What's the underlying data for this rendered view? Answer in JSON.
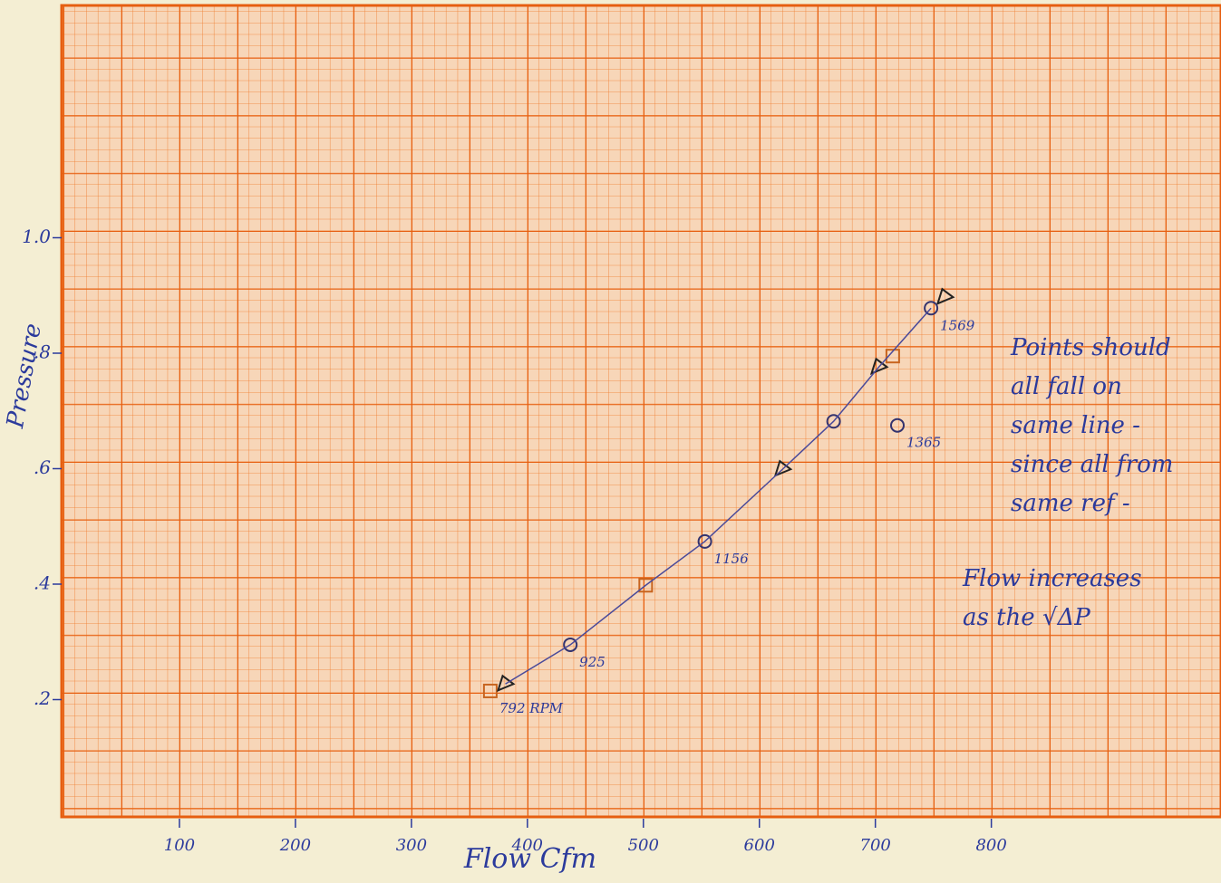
{
  "chart_data": {
    "type": "scatter",
    "x_label": "Flow Cfm",
    "y_label": "Pressure",
    "xlim": [
      0,
      998
    ],
    "ylim": [
      0,
      1.4
    ],
    "xticks": [
      100,
      200,
      300,
      400,
      500,
      600,
      700,
      800
    ],
    "yticks": [
      {
        "value": 0.2,
        "label": ".2"
      },
      {
        "value": 0.4,
        "label": ".4"
      },
      {
        "value": 0.6,
        "label": ".6"
      },
      {
        "value": 0.8,
        "label": ".8"
      },
      {
        "value": 1.0,
        "label": "1.0"
      }
    ],
    "annotations": [
      "Points should all fall on same line - since all from same ref -",
      "Flow increases as the √ΔP"
    ],
    "series": [
      {
        "marker": "square",
        "color": "#c8641e",
        "x": [
          368,
          502,
          715
        ],
        "values": [
          0.215,
          0.398,
          0.795
        ],
        "labels": [
          "792 RPM",
          null,
          null
        ]
      },
      {
        "marker": "triangle",
        "color": "#222222",
        "x": [
          381,
          620,
          703,
          760
        ],
        "values": [
          0.227,
          0.599,
          0.776,
          0.897
        ]
      },
      {
        "marker": "circle",
        "color": "#33336e",
        "x": [
          437,
          553,
          664,
          719,
          748
        ],
        "values": [
          0.295,
          0.474,
          0.682,
          0.675,
          0.878
        ],
        "labels": [
          "925",
          "1156",
          null,
          "1365",
          "1569"
        ]
      },
      {
        "marker": "line",
        "color": "#4a4a9a",
        "x": [
          381,
          437,
          502,
          553,
          620,
          664,
          703,
          748
        ],
        "values": [
          0.227,
          0.295,
          0.398,
          0.474,
          0.599,
          0.682,
          0.776,
          0.878
        ]
      }
    ]
  }
}
